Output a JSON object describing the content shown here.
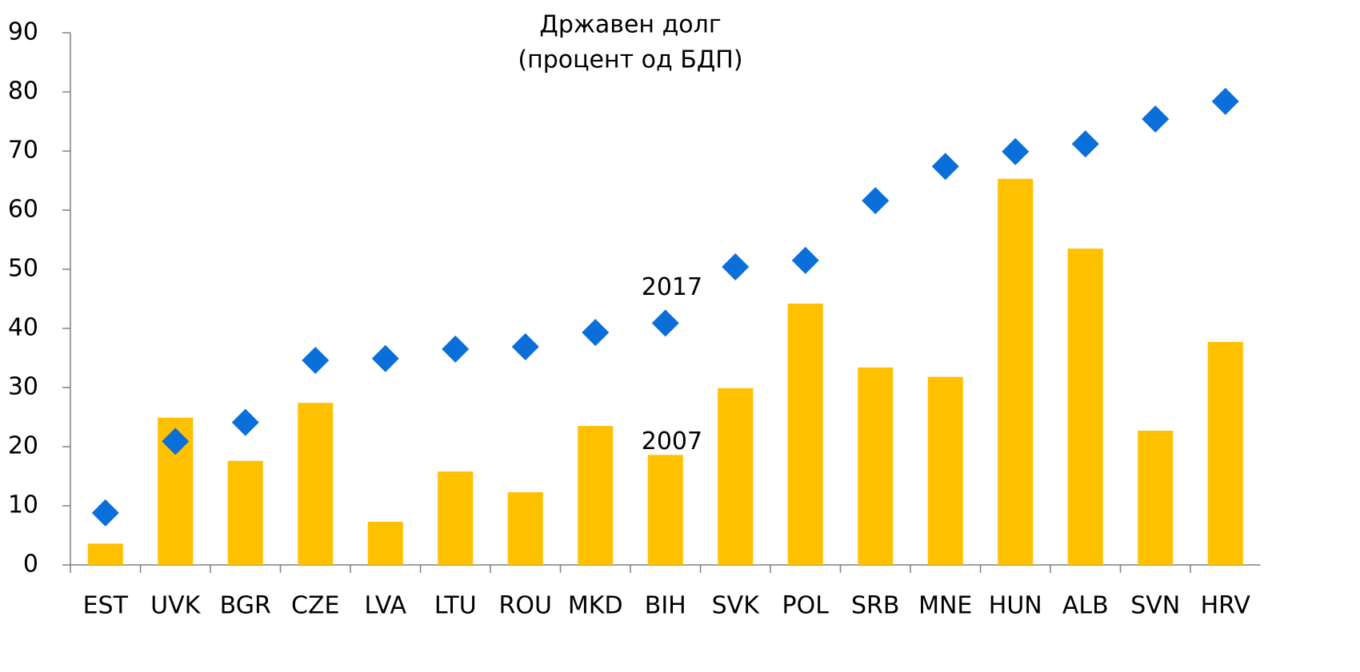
{
  "chart_data": {
    "type": "bar",
    "title": "Државен долг",
    "subtitle": "(процент од БДП)",
    "categories": [
      "EST",
      "UVK",
      "BGR",
      "CZE",
      "LVA",
      "LTU",
      "ROU",
      "MKD",
      "BIH",
      "SVK",
      "POL",
      "SRB",
      "MNE",
      "HUN",
      "ALB",
      "SVN",
      "HRV"
    ],
    "series": [
      {
        "name": "2007",
        "type": "bar",
        "color": "#ffc000",
        "values": [
          3.6,
          24.9,
          17.6,
          27.4,
          7.3,
          15.8,
          12.3,
          23.5,
          18.6,
          29.9,
          44.2,
          33.4,
          31.8,
          65.3,
          53.5,
          22.7,
          37.7
        ]
      },
      {
        "name": "2017",
        "type": "scatter",
        "color": "#0a6fd8",
        "values": [
          8.8,
          20.9,
          24.1,
          34.6,
          34.9,
          36.5,
          36.9,
          39.3,
          40.9,
          50.4,
          51.5,
          61.6,
          67.4,
          69.9,
          71.2,
          75.4,
          78.4
        ]
      }
    ],
    "ylim": [
      0,
      90
    ],
    "yticks": [
      0,
      10,
      20,
      30,
      40,
      50,
      60,
      70,
      80,
      90
    ],
    "grid": false
  }
}
